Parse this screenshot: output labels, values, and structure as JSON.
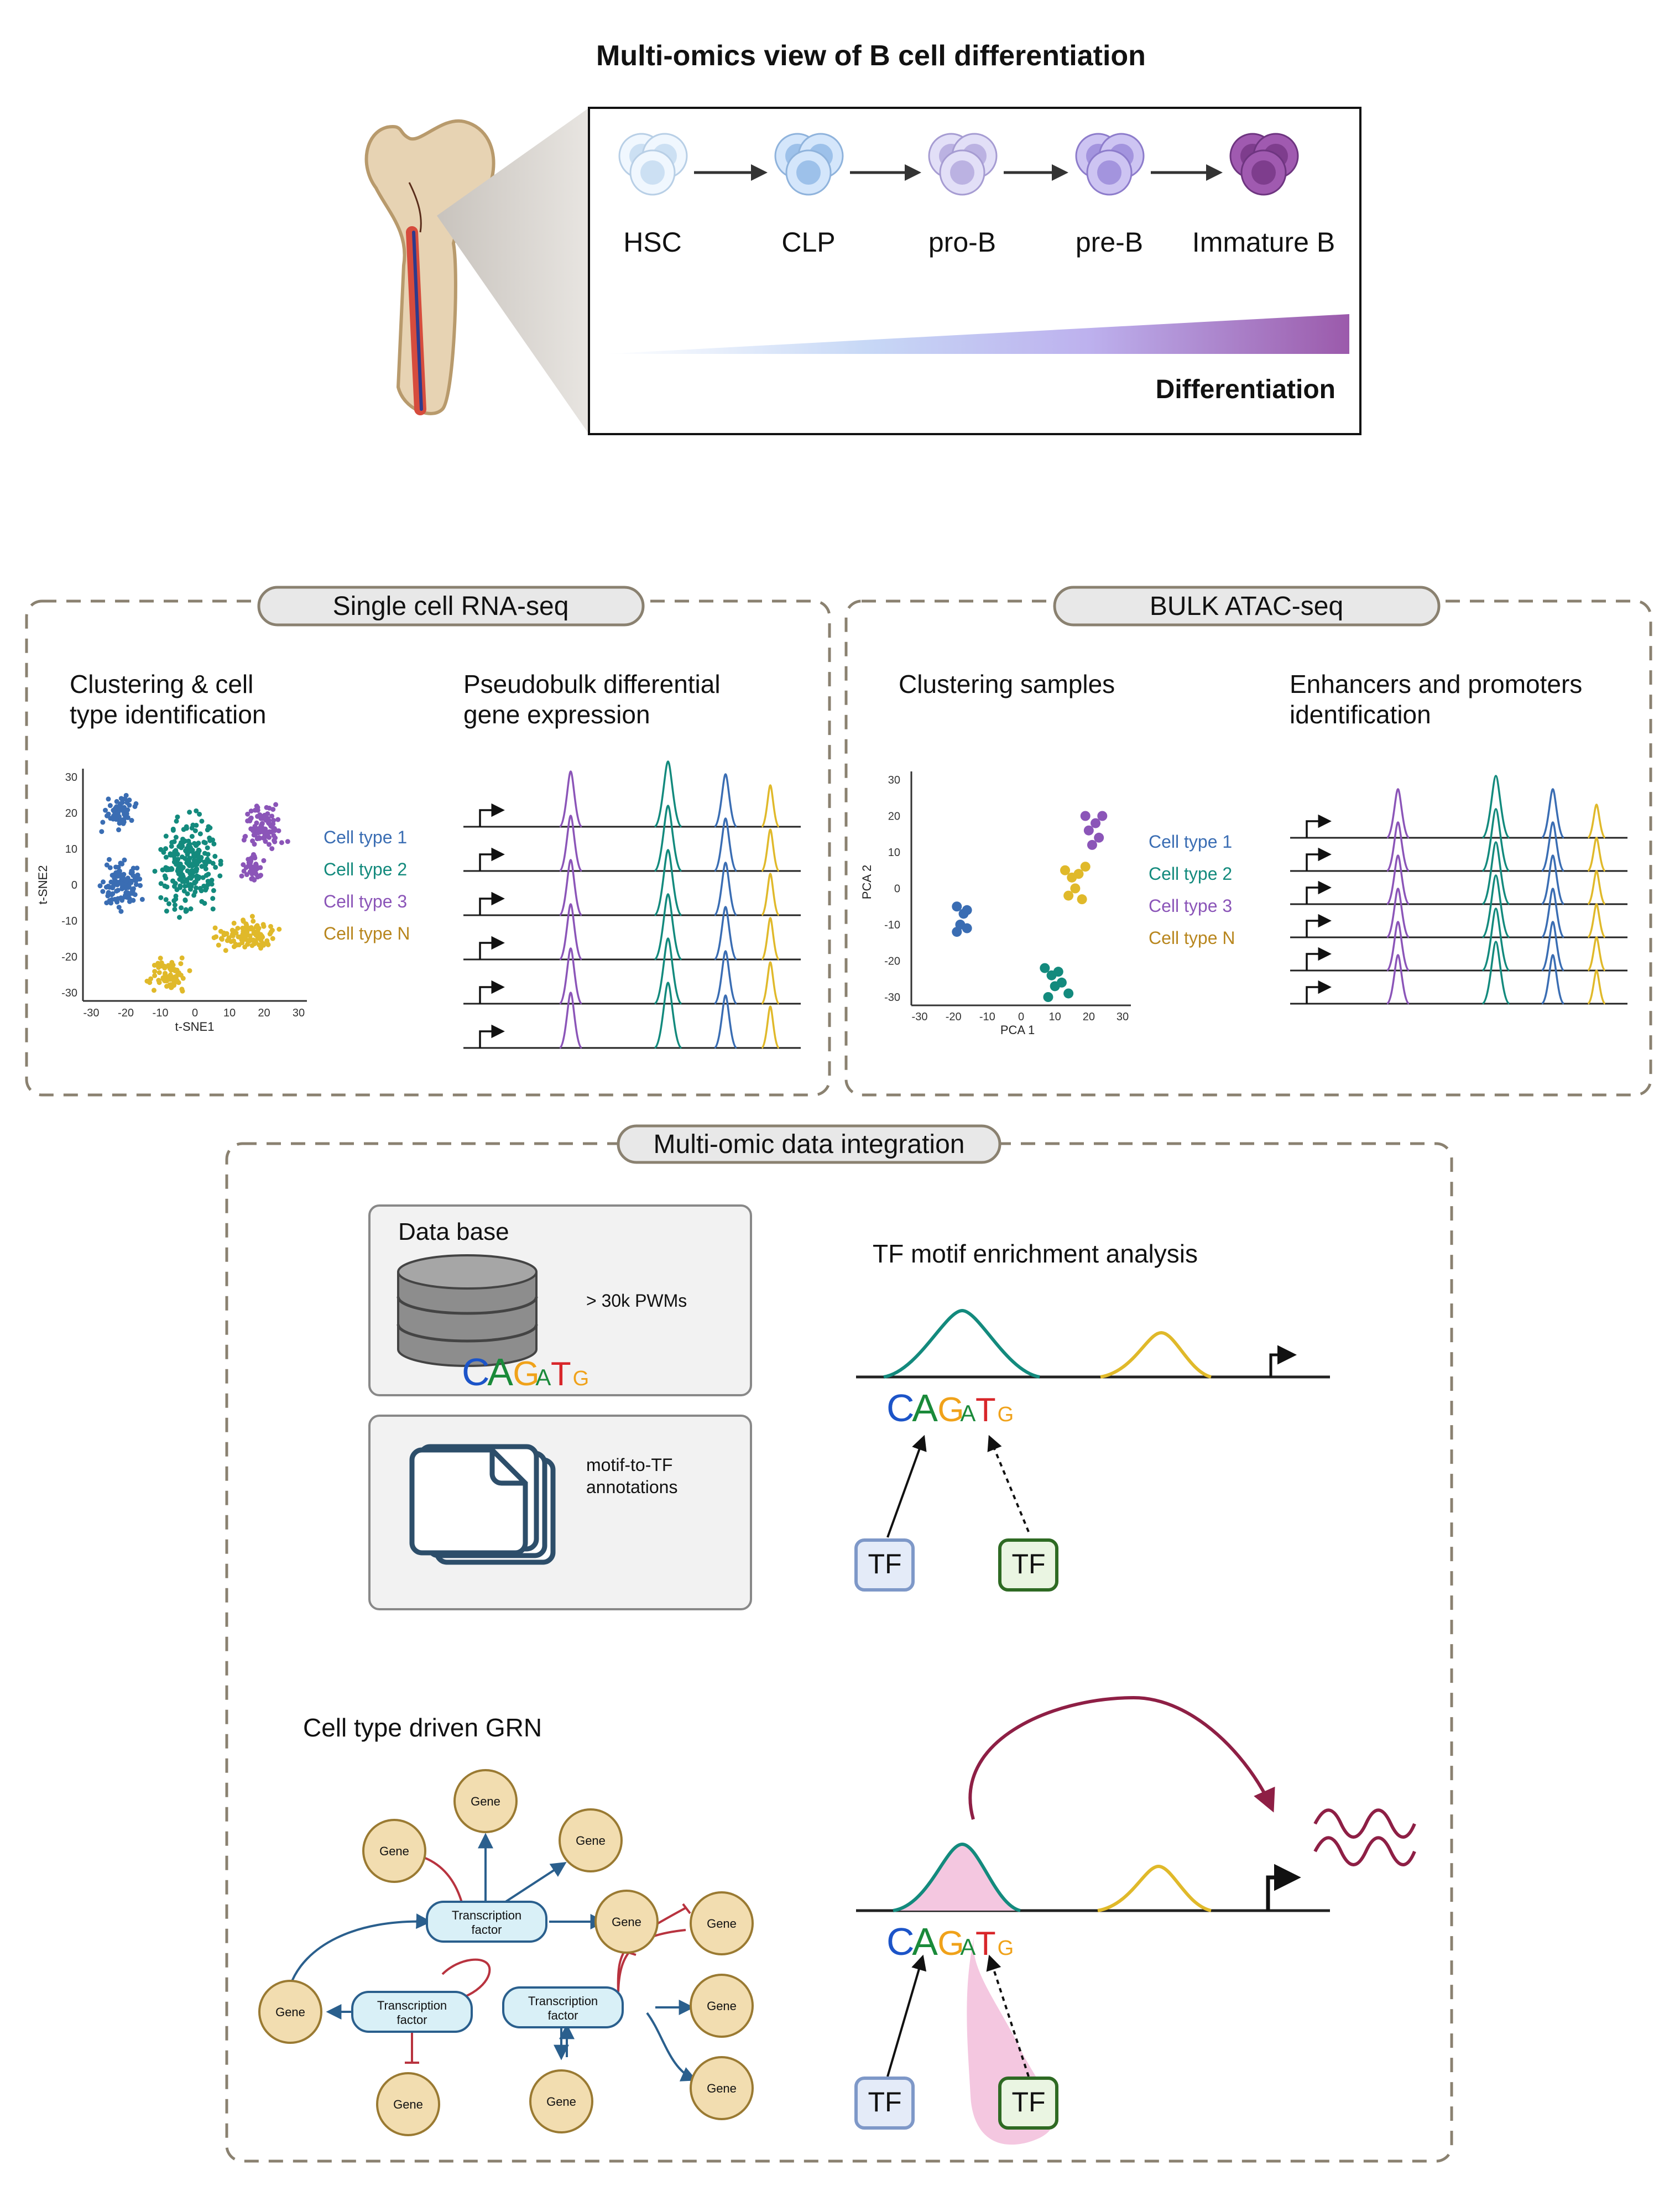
{
  "title": "Multi-omics view of B cell differentiation",
  "stages": [
    "HSC",
    "CLP",
    "pro-B",
    "pre-B",
    "Immature B"
  ],
  "differentiation_label": "Differentiation",
  "colors": {
    "cell_blue_light": "#d6e9fb",
    "cell_purple_dark": "#8e4a9e",
    "cell_type_1": "#3a6db3",
    "cell_type_2": "#138a7d",
    "cell_type_3": "#8b55b8",
    "cell_type_N": "#e0b92a",
    "legend_N": "#b8861e",
    "dashed_border": "#8a8170",
    "arrow_red": "#8e1f45",
    "gene_fill": "#f2ddb0",
    "tf_fill": "#d9f0f7",
    "network_blue": "#2a5f8d",
    "network_red": "#b8333f"
  },
  "scrna": {
    "header": "Single cell RNA-seq",
    "clustering_title_1": "Clustering & cell",
    "clustering_title_2": "type identification",
    "pseudobulk_title_1": "Pseudobulk differential",
    "pseudobulk_title_2": "gene expression",
    "x_axis_label": "t-SNE1",
    "y_axis_label": "t-SNE2",
    "x_ticks": [
      "-30",
      "-20",
      "-10",
      "0",
      "10",
      "20",
      "30"
    ],
    "y_ticks": [
      "30",
      "20",
      "10",
      "0",
      "-10",
      "-20",
      "-30"
    ],
    "legend": [
      "Cell type 1",
      "Cell type 2",
      "Cell type 3",
      "Cell type N"
    ]
  },
  "atac": {
    "header": "BULK ATAC-seq",
    "clustering_title": "Clustering samples",
    "enhancer_title_1": "Enhancers and promoters",
    "enhancer_title_2": "identification",
    "x_axis_label": "PCA 1",
    "y_axis_label": "PCA 2",
    "x_ticks": [
      "-30",
      "-20",
      "-10",
      "0",
      "10",
      "20",
      "30"
    ],
    "y_ticks": [
      "30",
      "20",
      "10",
      "0",
      "-10",
      "-20",
      "-30"
    ],
    "legend": [
      "Cell type 1",
      "Cell type 2",
      "Cell type 3",
      "Cell type N"
    ]
  },
  "integration": {
    "header": "Multi-omic data integration",
    "database_title": "Data base",
    "pwm_label": "> 30k PWMs",
    "annotation_label_1": "motif-to-TF",
    "annotation_label_2": "annotations",
    "tf_motif_title": "TF motif enrichment analysis",
    "grn_title": "Cell type driven GRN",
    "motif_letters": [
      "C",
      "A",
      "G",
      "A",
      "T",
      "G"
    ],
    "tf_label": "TF",
    "gene_label": "Gene",
    "tf_node_line1": "Transcription",
    "tf_node_line2": "factor"
  },
  "chart_data": [
    {
      "type": "scatter",
      "title": "",
      "xlabel": "t-SNE1",
      "ylabel": "t-SNE2",
      "xlim": [
        -30,
        30
      ],
      "ylim": [
        -30,
        30
      ],
      "series": [
        {
          "name": "Cell type 1",
          "x": [
            -22,
            -21
          ],
          "y": [
            20,
            0
          ]
        },
        {
          "name": "Cell type 2",
          "x": [
            -2,
            3
          ],
          "y": [
            5,
            18
          ]
        },
        {
          "name": "Cell type 3",
          "x": [
            20,
            17
          ],
          "y": [
            16,
            5
          ]
        },
        {
          "name": "Cell type N",
          "x": [
            -8,
            15
          ],
          "y": [
            -25,
            -14
          ]
        }
      ]
    },
    {
      "type": "scatter",
      "title": "",
      "xlabel": "PCA 1",
      "ylabel": "PCA 2",
      "xlim": [
        -30,
        30
      ],
      "ylim": [
        -30,
        30
      ],
      "series": [
        {
          "name": "Cell type 1",
          "x": [
            -19,
            -17,
            -18,
            -16,
            -19,
            -16
          ],
          "y": [
            -5,
            -7,
            -10,
            -11,
            -12,
            -6
          ]
        },
        {
          "name": "Cell type 2",
          "x": [
            7,
            9,
            11,
            10,
            12,
            14,
            8
          ],
          "y": [
            -22,
            -24,
            -23,
            -27,
            -26,
            -29,
            -30
          ]
        },
        {
          "name": "Cell type 3",
          "x": [
            19,
            22,
            20,
            24,
            23,
            21
          ],
          "y": [
            20,
            18,
            16,
            20,
            14,
            12
          ]
        },
        {
          "name": "Cell type N",
          "x": [
            13,
            15,
            17,
            19,
            16,
            18,
            14
          ],
          "y": [
            5,
            3,
            4,
            6,
            0,
            -3,
            -2
          ]
        }
      ]
    }
  ]
}
